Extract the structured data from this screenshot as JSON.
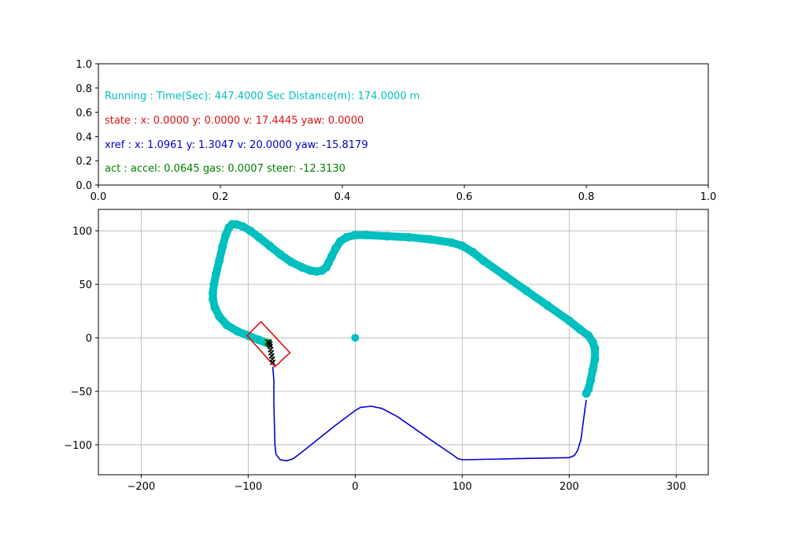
{
  "colors": {
    "track": "#00bfbf",
    "ref_path": "#0000cc",
    "vehicle_box": "#dd1111",
    "ref_points": "#000000",
    "predicted": "#008000",
    "origin": "#00bfbf"
  },
  "info_panel": {
    "lines": [
      {
        "text": "Running : Time(Sec): 447.4000 Sec Distance(m): 174.0000 m",
        "color": "#00bfbf"
      },
      {
        "text": "state :  x: 0.0000 y: 0.0000 v: 17.4445 yaw: 0.0000",
        "color": "#dd1111"
      },
      {
        "text": "xref :  x: 1.0961 y: 1.3047 v: 20.0000 yaw: -15.8179",
        "color": "#0000cc"
      },
      {
        "text": "act :  accel: 0.0645 gas: 0.0007 steer: -12.3130",
        "color": "#008000"
      }
    ],
    "xlim": [
      0,
      1
    ],
    "ylim": [
      0,
      1
    ],
    "xticks": [
      "0.0",
      "0.2",
      "0.4",
      "0.6",
      "0.8",
      "1.0"
    ],
    "yticks": [
      "0.0",
      "0.2",
      "0.4",
      "0.6",
      "0.8",
      "1.0"
    ]
  },
  "chart_data": {
    "type": "line",
    "xlim": [
      -240,
      330
    ],
    "ylim": [
      -128,
      120
    ],
    "xticks": [
      -200,
      -100,
      0,
      100,
      200,
      300
    ],
    "yticks": [
      -100,
      -50,
      0,
      50,
      100
    ],
    "grid": true,
    "track": {
      "x": [
        -82,
        -90,
        -100,
        -110,
        -120,
        -127,
        -131,
        -133,
        -133,
        -132,
        -130,
        -127,
        -124,
        -121,
        -118,
        -115,
        -111,
        -105,
        -98,
        -90,
        -80,
        -70,
        -60,
        -50,
        -42,
        -36,
        -31,
        -27,
        -25,
        -22,
        -18,
        -14,
        -8,
        0,
        10,
        30,
        50,
        70,
        90,
        100,
        110,
        120,
        140,
        160,
        180,
        200,
        210,
        218,
        222,
        224,
        224,
        222,
        220,
        218,
        216
      ],
      "y": [
        -5,
        -2,
        2,
        6,
        12,
        20,
        28,
        36,
        42,
        50,
        60,
        72,
        85,
        96,
        103,
        106,
        106,
        104,
        100,
        94,
        86,
        78,
        71,
        66,
        63,
        62,
        63,
        66,
        70,
        76,
        84,
        90,
        94,
        96,
        96,
        95,
        94,
        92,
        89,
        86,
        80,
        72,
        58,
        44,
        30,
        16,
        8,
        2,
        -4,
        -10,
        -20,
        -30,
        -40,
        -48,
        -52
      ]
    },
    "reference_path": {
      "x": [
        216,
        215,
        213,
        211,
        208,
        205,
        200,
        150,
        100,
        96,
        92,
        70,
        40,
        25,
        15,
        5,
        0,
        -8,
        -20,
        -35,
        -50,
        -58,
        -64,
        -70,
        -74,
        -75,
        -76,
        -76,
        -77
      ],
      "y": [
        -58,
        -65,
        -80,
        -95,
        -105,
        -110,
        -112,
        -113,
        -114,
        -113,
        -110,
        -95,
        -74,
        -66,
        -64,
        -65,
        -68,
        -74,
        -83,
        -95,
        -107,
        -113,
        -115,
        -114,
        -109,
        -100,
        -60,
        -40,
        -27
      ]
    },
    "ref_points": {
      "x": [
        -77,
        -77.5,
        -78,
        -78.5,
        -79,
        -79.5,
        -80,
        -80.5
      ],
      "y": [
        -23,
        -20,
        -17,
        -14,
        -11,
        -8,
        -6,
        -4
      ]
    },
    "predicted_points": {
      "x": [
        -80,
        -81,
        -82
      ],
      "y": [
        -6,
        -5,
        -4
      ]
    },
    "origin_marker": {
      "x": 0,
      "y": 0
    },
    "vehicle_box": {
      "x": [
        -101,
        -88,
        -61,
        -75,
        -101
      ],
      "y": [
        2,
        15,
        -14,
        -27,
        2
      ]
    }
  }
}
